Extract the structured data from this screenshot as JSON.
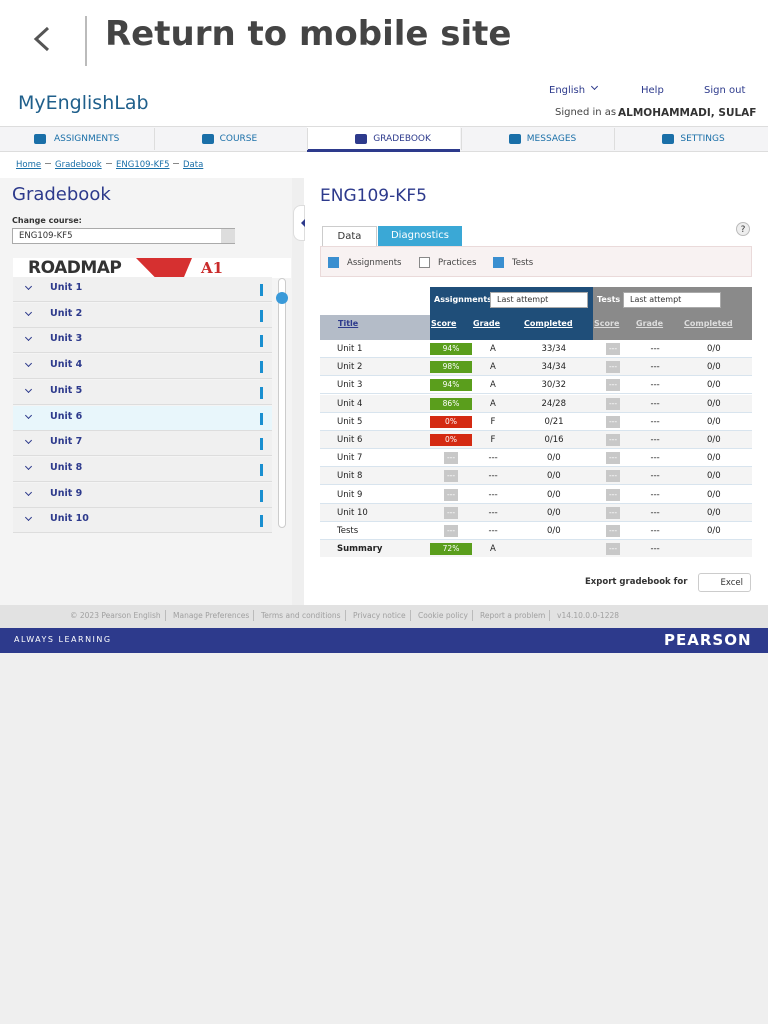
{
  "top_bar": {
    "title": "Return to mobile site"
  },
  "header": {
    "logo": "MyEnglishLab",
    "language": "English",
    "help": "Help",
    "sign_out": "Sign out",
    "signed_in_label": "Signed in as",
    "user": "ALMOHAMMADI, SULAF"
  },
  "nav": [
    "ASSIGNMENTS",
    "COURSE",
    "GRADEBOOK",
    "MESSAGES",
    "SETTINGS"
  ],
  "breadcrumb": [
    "Home",
    "Gradebook",
    "ENG109-KF5",
    "Data"
  ],
  "sidebar": {
    "title": "Gradebook",
    "change_course_label": "Change course:",
    "course": "ENG109-KF5",
    "book": "ROADMAP",
    "level": "A1",
    "units": [
      "Unit 1",
      "Unit 2",
      "Unit 3",
      "Unit 4",
      "Unit 5",
      "Unit 6",
      "Unit 7",
      "Unit 8",
      "Unit 9",
      "Unit 10"
    ]
  },
  "main": {
    "title": "ENG109-KF5",
    "tabs": [
      "Data",
      "Diagnostics"
    ],
    "help": "?",
    "filters": [
      {
        "label": "Assignments",
        "checked": true
      },
      {
        "label": "Practices",
        "checked": false
      },
      {
        "label": "Tests",
        "checked": true
      }
    ],
    "table": {
      "group_assignments": "Assignments",
      "group_tests": "Tests",
      "attempt_assignments": "Last attempt",
      "attempt_tests": "Last attempt",
      "columns": [
        "Title",
        "Score",
        "Grade",
        "Completed",
        "Score",
        "Grade",
        "Completed"
      ],
      "rows": [
        {
          "title": "Unit 1",
          "score": "94%",
          "grade": "A",
          "completed": "33/34",
          "test_score": "---",
          "test_grade": "---",
          "test_completed": "0/0"
        },
        {
          "title": "Unit 2",
          "score": "98%",
          "grade": "A",
          "completed": "34/34",
          "test_score": "---",
          "test_grade": "---",
          "test_completed": "0/0"
        },
        {
          "title": "Unit 3",
          "score": "94%",
          "grade": "A",
          "completed": "30/32",
          "test_score": "---",
          "test_grade": "---",
          "test_completed": "0/0"
        },
        {
          "title": "Unit 4",
          "score": "86%",
          "grade": "A",
          "completed": "24/28",
          "test_score": "---",
          "test_grade": "---",
          "test_completed": "0/0"
        },
        {
          "title": "Unit 5",
          "score": "0%",
          "grade": "F",
          "completed": "0/21",
          "test_score": "---",
          "test_grade": "---",
          "test_completed": "0/0"
        },
        {
          "title": "Unit 6",
          "score": "0%",
          "grade": "F",
          "completed": "0/16",
          "test_score": "---",
          "test_grade": "---",
          "test_completed": "0/0"
        },
        {
          "title": "Unit 7",
          "score": "---",
          "grade": "---",
          "completed": "0/0",
          "test_score": "---",
          "test_grade": "---",
          "test_completed": "0/0"
        },
        {
          "title": "Unit 8",
          "score": "---",
          "grade": "---",
          "completed": "0/0",
          "test_score": "---",
          "test_grade": "---",
          "test_completed": "0/0"
        },
        {
          "title": "Unit 9",
          "score": "---",
          "grade": "---",
          "completed": "0/0",
          "test_score": "---",
          "test_grade": "---",
          "test_completed": "0/0"
        },
        {
          "title": "Unit 10",
          "score": "---",
          "grade": "---",
          "completed": "0/0",
          "test_score": "---",
          "test_grade": "---",
          "test_completed": "0/0"
        },
        {
          "title": "Tests",
          "score": "---",
          "grade": "---",
          "completed": "0/0",
          "test_score": "---",
          "test_grade": "---",
          "test_completed": "0/0"
        },
        {
          "title": "Summary",
          "score": "72%",
          "grade": "A",
          "test_score": "---",
          "test_grade": "---"
        }
      ]
    },
    "export_label": "Export gradebook for",
    "export_button": "Excel"
  },
  "footer": {
    "links": [
      "© 2023 Pearson English",
      "Manage Preferences",
      "Terms and conditions",
      "Privacy notice",
      "Cookie policy",
      "Report a problem",
      "v14.10.0.0-1228"
    ]
  },
  "brand_bar": {
    "tagline": "ALWAYS LEARNING",
    "brand": "PEARSON"
  }
}
